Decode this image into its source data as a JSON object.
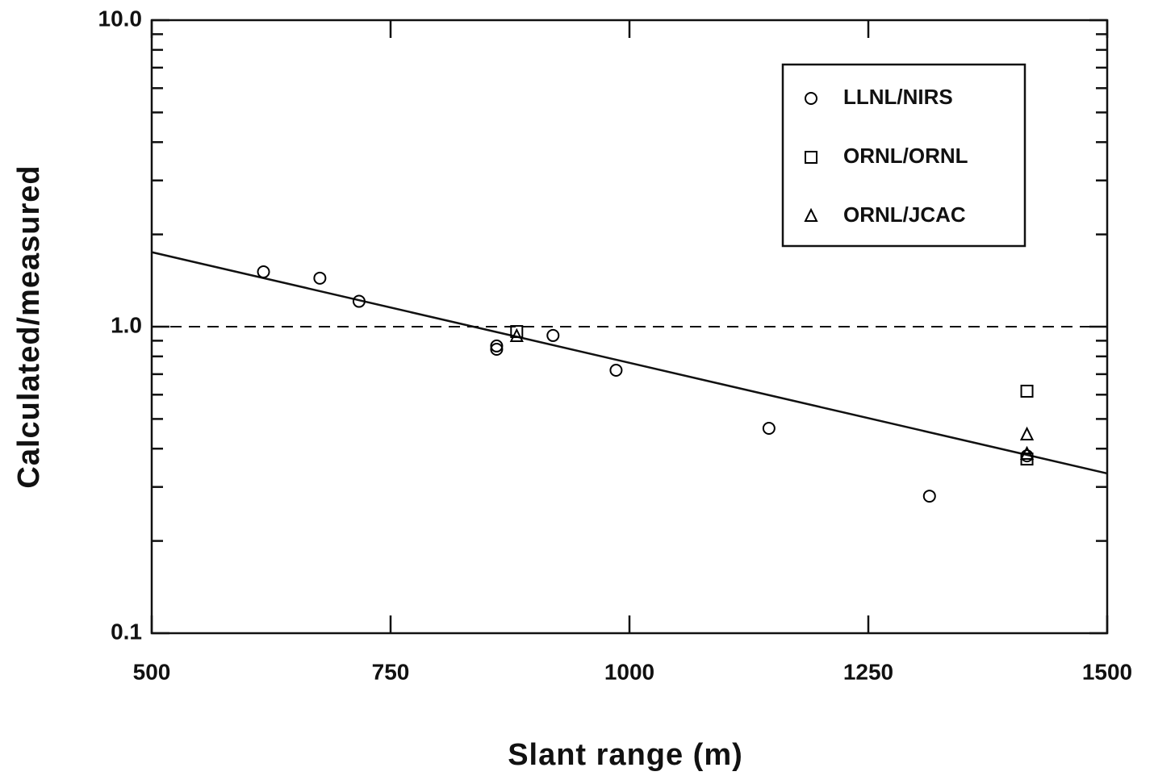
{
  "chart_data": {
    "type": "scatter",
    "xlabel": "Slant range (m)",
    "ylabel": "Calculated/measured",
    "xlim": [
      500,
      1500
    ],
    "xticks": [
      500,
      750,
      1000,
      1250,
      1500
    ],
    "ylim": [
      0.1,
      10
    ],
    "yscale": "log",
    "yticks": [
      0.1,
      {
        "value": 1,
        "label": "1.0"
      },
      {
        "value": 10,
        "label": "10.0"
      }
    ],
    "minor_yticks": [
      0.2,
      0.3,
      0.4,
      0.5,
      0.6,
      0.7,
      0.8,
      0.9,
      2,
      3,
      4,
      5,
      6,
      7,
      8,
      9
    ],
    "legend": "upper right",
    "series": [
      {
        "name": "LLNL/NIRS",
        "marker": "circle",
        "color": "#000000",
        "x": [
          617,
          676,
          717,
          861,
          861,
          920,
          986,
          1146,
          1314,
          1416
        ],
        "values": [
          1.51,
          1.44,
          1.21,
          0.865,
          0.844,
          0.936,
          0.721,
          0.466,
          0.28,
          0.379
        ]
      },
      {
        "name": "ORNL/ORNL",
        "marker": "square",
        "color": "#000000",
        "x": [
          882,
          1416,
          1416
        ],
        "values": [
          0.964,
          0.616,
          0.37
        ]
      },
      {
        "name": "ORNL/JCAC",
        "marker": "triangle",
        "color": "#000000",
        "x": [
          882,
          1416,
          1416
        ],
        "values": [
          0.93,
          0.444,
          0.384
        ]
      }
    ],
    "fit_line": {
      "x": [
        500,
        1500
      ],
      "y": [
        1.75,
        0.332
      ]
    },
    "reference_line": 1
  }
}
